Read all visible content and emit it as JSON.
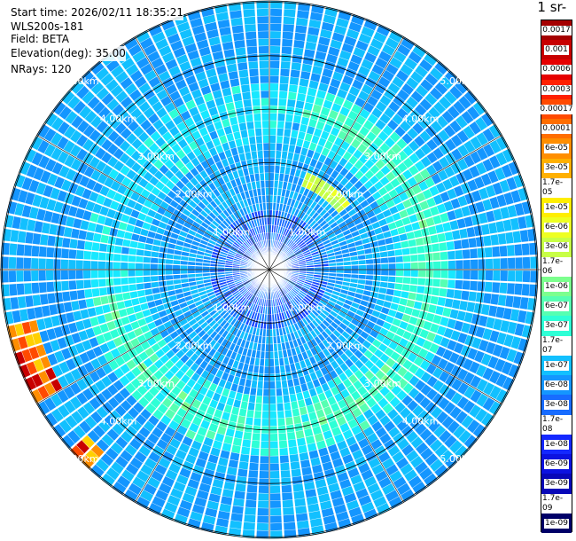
{
  "header": {
    "start_time": "Start time: 2026/02/11 18:35:21",
    "instrument": "WLS200s-181",
    "field": "Field: BETA",
    "elevation": "Elevation(deg): 35.00",
    "nrays": "NRays: 120"
  },
  "colorbar": {
    "title": "-1 sr-",
    "labels": [
      "0.0017",
      "0.001",
      "0.0006",
      "0.0003",
      "0.00017",
      "0.0001",
      "6e-05",
      "3e-05",
      "1.7e-05",
      "1e-05",
      "6e-06",
      "3e-06",
      "1.7e-06",
      "1e-06",
      "6e-07",
      "3e-07",
      "1.7e-07",
      "1e-07",
      "6e-08",
      "3e-08",
      "1.7e-08",
      "1e-08",
      "6e-09",
      "3e-09",
      "1.7e-09",
      "1e-09"
    ],
    "colors": [
      "#a50000",
      "#c80000",
      "#e60000",
      "#ff2000",
      "#ff4a00",
      "#ff6e00",
      "#ff8e00",
      "#ffb000",
      "#ffd000",
      "#ffee00",
      "#eeff22",
      "#c8ff46",
      "#a6ff6a",
      "#7cff8e",
      "#56ffb2",
      "#2effd6",
      "#18e8ff",
      "#12c0ff",
      "#1496ff",
      "#186cff",
      "#1846ff",
      "#1428ff",
      "#0c12e0",
      "#0808b8",
      "#040490",
      "#000068"
    ]
  },
  "range_rings": [
    "1.00km",
    "2.00km",
    "3.00km",
    "4.00km",
    "5.00km"
  ]
}
